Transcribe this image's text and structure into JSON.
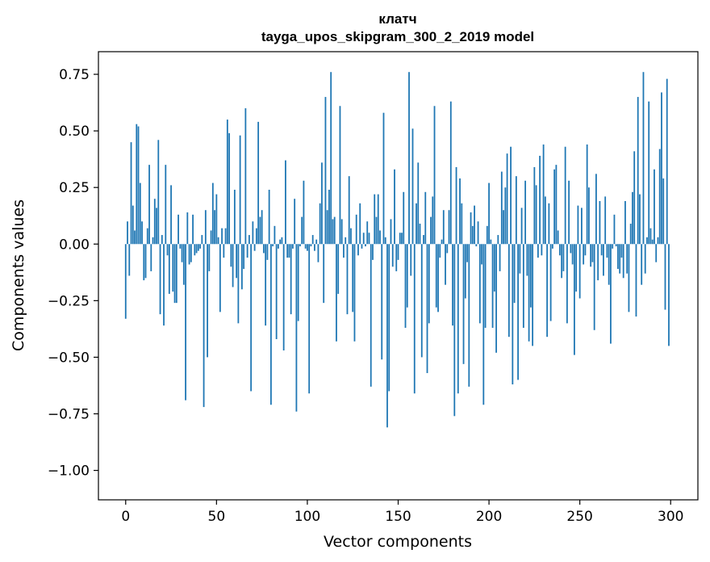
{
  "chart_data": {
    "type": "bar",
    "title": "клатч",
    "subtitle": "tayga_upos_skipgram_300_2_2019 model",
    "xlabel": "Vector components",
    "ylabel": "Components values",
    "xlim": [
      -15,
      315
    ],
    "ylim": [
      -1.13,
      0.85
    ],
    "xticks": [
      0,
      50,
      100,
      150,
      200,
      250,
      300
    ],
    "yticks": [
      -1.0,
      -0.75,
      -0.5,
      -0.25,
      0.0,
      0.25,
      0.5,
      0.75
    ],
    "xtick_labels": [
      "0",
      "50",
      "100",
      "150",
      "200",
      "250",
      "300"
    ],
    "ytick_labels": [
      "−1.00",
      "−0.75",
      "−0.50",
      "−0.25",
      "0.00",
      "0.25",
      "0.50",
      "0.75"
    ],
    "bar_color": "#1f77b4",
    "grid": false,
    "x": [
      0,
      1,
      2,
      3,
      4,
      5,
      6,
      7,
      8,
      9,
      10,
      11,
      12,
      13,
      14,
      15,
      16,
      17,
      18,
      19,
      20,
      21,
      22,
      23,
      24,
      25,
      26,
      27,
      28,
      29,
      30,
      31,
      32,
      33,
      34,
      35,
      36,
      37,
      38,
      39,
      40,
      41,
      42,
      43,
      44,
      45,
      46,
      47,
      48,
      49,
      50,
      51,
      52,
      53,
      54,
      55,
      56,
      57,
      58,
      59,
      60,
      61,
      62,
      63,
      64,
      65,
      66,
      67,
      68,
      69,
      70,
      71,
      72,
      73,
      74,
      75,
      76,
      77,
      78,
      79,
      80,
      81,
      82,
      83,
      84,
      85,
      86,
      87,
      88,
      89,
      90,
      91,
      92,
      93,
      94,
      95,
      96,
      97,
      98,
      99,
      100,
      101,
      102,
      103,
      104,
      105,
      106,
      107,
      108,
      109,
      110,
      111,
      112,
      113,
      114,
      115,
      116,
      117,
      118,
      119,
      120,
      121,
      122,
      123,
      124,
      125,
      126,
      127,
      128,
      129,
      130,
      131,
      132,
      133,
      134,
      135,
      136,
      137,
      138,
      139,
      140,
      141,
      142,
      143,
      144,
      145,
      146,
      147,
      148,
      149,
      150,
      151,
      152,
      153,
      154,
      155,
      156,
      157,
      158,
      159,
      160,
      161,
      162,
      163,
      164,
      165,
      166,
      167,
      168,
      169,
      170,
      171,
      172,
      173,
      174,
      175,
      176,
      177,
      178,
      179,
      180,
      181,
      182,
      183,
      184,
      185,
      186,
      187,
      188,
      189,
      190,
      191,
      192,
      193,
      194,
      195,
      196,
      197,
      198,
      199,
      200,
      201,
      202,
      203,
      204,
      205,
      206,
      207,
      208,
      209,
      210,
      211,
      212,
      213,
      214,
      215,
      216,
      217,
      218,
      219,
      220,
      221,
      222,
      223,
      224,
      225,
      226,
      227,
      228,
      229,
      230,
      231,
      232,
      233,
      234,
      235,
      236,
      237,
      238,
      239,
      240,
      241,
      242,
      243,
      244,
      245,
      246,
      247,
      248,
      249,
      250,
      251,
      252,
      253,
      254,
      255,
      256,
      257,
      258,
      259,
      260,
      261,
      262,
      263,
      264,
      265,
      266,
      267,
      268,
      269,
      270,
      271,
      272,
      273,
      274,
      275,
      276,
      277,
      278,
      279,
      280,
      281,
      282,
      283,
      284,
      285,
      286,
      287,
      288,
      289,
      290,
      291,
      292,
      293,
      294,
      295,
      296,
      297,
      298,
      299
    ],
    "values": [
      -0.33,
      0.1,
      -0.14,
      0.45,
      0.17,
      0.06,
      0.53,
      0.52,
      0.27,
      0.1,
      -0.16,
      -0.15,
      0.07,
      0.35,
      -0.12,
      0.03,
      0.2,
      0.16,
      0.46,
      -0.31,
      0.04,
      -0.36,
      0.35,
      -0.05,
      -0.22,
      0.26,
      -0.21,
      -0.26,
      -0.26,
      0.13,
      -0.02,
      -0.08,
      -0.18,
      -0.69,
      0.14,
      -0.09,
      -0.08,
      0.13,
      -0.05,
      -0.04,
      -0.03,
      -0.02,
      0.04,
      -0.72,
      0.15,
      -0.5,
      -0.12,
      0.06,
      0.27,
      0.15,
      0.22,
      0.03,
      -0.3,
      0.07,
      -0.06,
      0.07,
      0.55,
      0.49,
      -0.1,
      -0.19,
      0.24,
      -0.15,
      -0.35,
      0.48,
      -0.2,
      -0.11,
      0.6,
      -0.06,
      0.04,
      -0.65,
      0.1,
      -0.03,
      0.07,
      0.54,
      0.12,
      0.15,
      -0.04,
      -0.36,
      -0.07,
      0.24,
      -0.71,
      -0.01,
      0.08,
      -0.42,
      -0.02,
      0.02,
      0.03,
      -0.47,
      0.37,
      -0.06,
      -0.06,
      -0.31,
      -0.02,
      0.2,
      -0.74,
      -0.34,
      -0.01,
      0.12,
      0.28,
      -0.02,
      -0.03,
      -0.66,
      -0.01,
      0.04,
      -0.03,
      0.02,
      -0.08,
      0.18,
      0.36,
      -0.26,
      0.65,
      0.15,
      0.24,
      0.76,
      0.11,
      0.12,
      -0.43,
      -0.22,
      0.61,
      0.11,
      -0.06,
      0.03,
      -0.31,
      0.3,
      0.07,
      -0.3,
      -0.43,
      0.13,
      -0.05,
      0.18,
      -0.02,
      0.05,
      -0.01,
      0.1,
      0.05,
      -0.63,
      -0.07,
      0.22,
      0.12,
      0.22,
      0.06,
      -0.51,
      0.58,
      0.03,
      -0.81,
      -0.65,
      0.11,
      -0.1,
      0.33,
      -0.12,
      -0.07,
      0.05,
      0.05,
      0.23,
      -0.37,
      -0.28,
      0.76,
      -0.14,
      0.51,
      -0.66,
      0.18,
      0.36,
      0.09,
      -0.5,
      0.04,
      0.23,
      -0.57,
      -0.35,
      0.12,
      0.21,
      0.61,
      -0.28,
      -0.3,
      -0.06,
      0.02,
      0.15,
      -0.18,
      -0.04,
      0.15,
      0.63,
      -0.36,
      -0.76,
      0.34,
      -0.66,
      0.29,
      0.18,
      -0.53,
      -0.24,
      -0.08,
      -0.63,
      0.14,
      0.08,
      0.17,
      -0.01,
      0.1,
      -0.35,
      -0.09,
      -0.71,
      -0.37,
      0.08,
      0.27,
      0.02,
      -0.37,
      -0.21,
      -0.48,
      0.04,
      -0.12,
      0.32,
      0.15,
      0.25,
      0.4,
      -0.41,
      0.43,
      -0.62,
      -0.26,
      0.3,
      -0.6,
      -0.13,
      0.16,
      -0.37,
      0.28,
      -0.14,
      -0.43,
      -0.28,
      -0.45,
      0.34,
      0.26,
      -0.06,
      0.39,
      -0.05,
      0.44,
      0.21,
      -0.41,
      0.18,
      -0.34,
      -0.02,
      0.33,
      0.35,
      0.06,
      -0.05,
      -0.15,
      -0.12,
      0.43,
      -0.35,
      0.28,
      -0.04,
      -0.09,
      -0.49,
      -0.21,
      0.17,
      -0.24,
      0.16,
      -0.09,
      -0.05,
      0.44,
      0.25,
      -0.1,
      -0.08,
      -0.38,
      0.31,
      -0.16,
      0.19,
      -0.05,
      -0.14,
      0.21,
      -0.06,
      -0.18,
      -0.44,
      -0.02,
      0.13,
      -0.01,
      -0.11,
      -0.13,
      -0.06,
      -0.15,
      0.19,
      -0.13,
      -0.3,
      0.09,
      0.23,
      0.41,
      -0.32,
      0.65,
      0.22,
      -0.18,
      0.76,
      -0.13,
      0.03,
      0.63,
      0.07,
      0.02,
      0.33,
      -0.08,
      0.03,
      0.42,
      0.67,
      0.29,
      -0.29,
      0.73,
      -0.45
    ]
  }
}
